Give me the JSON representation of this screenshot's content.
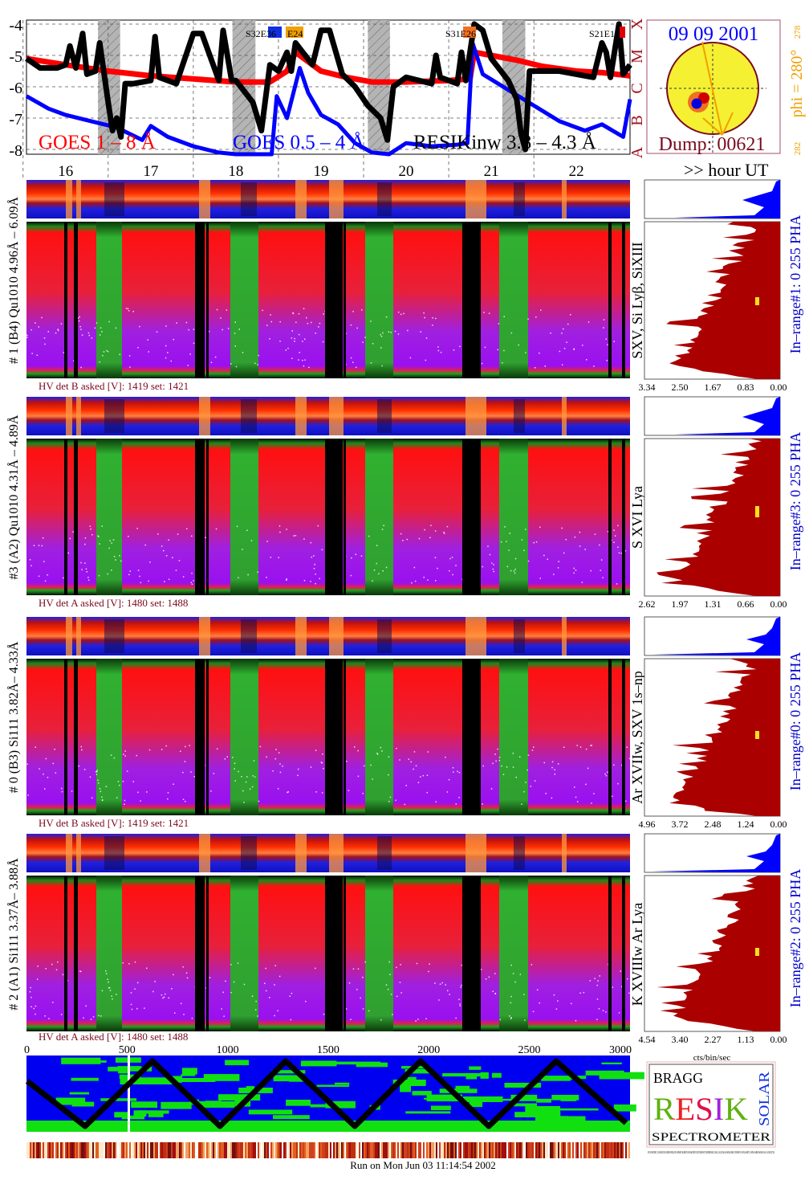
{
  "chart_data": [
    {
      "type": "line",
      "title": "",
      "xlabel": ">> hour UT",
      "ylabel": "",
      "xlim": [
        15.54,
        22.63
      ],
      "ylim": [
        -8.15,
        -3.9
      ],
      "y_scale": "log10 flux",
      "x_ticks": [
        "16",
        "17",
        "18",
        "19",
        "20",
        "21",
        "22"
      ],
      "y_ticks": [
        "-4",
        "-5",
        "-6",
        "-7",
        "-8"
      ],
      "goes_class_labels": [
        "A",
        "B",
        "C",
        "M",
        "X"
      ],
      "grid": true,
      "night_intervals_hours": [
        [
          16.38,
          16.64
        ],
        [
          17.96,
          18.23
        ],
        [
          19.55,
          19.81
        ],
        [
          21.13,
          21.4
        ]
      ],
      "series": [
        {
          "name": "GOES 1 – 8 Å",
          "color": "#ff0000",
          "x": [
            15.54,
            16.0,
            16.5,
            17.0,
            17.5,
            18.0,
            18.4,
            18.6,
            18.7,
            19.0,
            19.3,
            19.6,
            20.0,
            20.5,
            20.75,
            20.8,
            21.0,
            21.3,
            21.6,
            22.0,
            22.3,
            22.63
          ],
          "y": [
            -5.1,
            -5.3,
            -5.5,
            -5.65,
            -5.75,
            -5.85,
            -5.85,
            -5.5,
            -4.9,
            -5.5,
            -5.7,
            -5.85,
            -5.85,
            -5.8,
            -5.75,
            -4.9,
            -5.0,
            -5.15,
            -5.35,
            -5.5,
            -5.55,
            -5.65
          ]
        },
        {
          "name": "GOES 0.5 – 4 Å",
          "color": "#0000ff",
          "x": [
            15.54,
            15.8,
            16.0,
            16.3,
            16.6,
            16.9,
            17.0,
            17.2,
            17.5,
            17.8,
            18.0,
            18.3,
            18.42,
            18.48,
            18.6,
            18.75,
            18.85,
            19.0,
            19.2,
            19.4,
            19.6,
            19.8,
            20.0,
            20.3,
            20.6,
            20.72,
            20.78,
            20.9,
            21.2,
            21.5,
            21.8,
            22.1,
            22.3,
            22.55,
            22.63
          ],
          "y": [
            -6.3,
            -6.7,
            -6.9,
            -7.1,
            -7.3,
            -7.7,
            -7.25,
            -7.6,
            -7.9,
            -8.1,
            -8.2,
            -8.2,
            -8.2,
            -6.3,
            -7.0,
            -5.4,
            -6.2,
            -6.9,
            -7.2,
            -7.8,
            -8.1,
            -8.2,
            -7.8,
            -7.9,
            -7.85,
            -7.8,
            -4.6,
            -5.6,
            -6.1,
            -6.6,
            -7.1,
            -7.4,
            -7.2,
            -7.6,
            -6.4
          ]
        },
        {
          "name": "RESIKinw 3.8 – 4.3 Å",
          "color": "#000000",
          "x": [
            15.54,
            15.7,
            15.9,
            16.0,
            16.05,
            16.12,
            16.2,
            16.25,
            16.35,
            16.4,
            16.5,
            16.55,
            16.6,
            16.65,
            16.7,
            16.8,
            17.0,
            17.05,
            17.1,
            17.3,
            17.5,
            17.6,
            17.8,
            17.85,
            17.95,
            18.0,
            18.2,
            18.3,
            18.4,
            18.5,
            18.6,
            18.65,
            18.7,
            18.9,
            19.0,
            19.1,
            19.25,
            19.4,
            19.55,
            19.7,
            19.78,
            19.85,
            20.0,
            20.3,
            20.35,
            20.4,
            20.6,
            20.65,
            20.7,
            20.8,
            20.9,
            21.0,
            21.2,
            21.3,
            21.35,
            21.4,
            21.45,
            21.6,
            21.8,
            22.0,
            22.2,
            22.3,
            22.35,
            22.4,
            22.5,
            22.55,
            22.63
          ],
          "y": [
            -5.1,
            -5.4,
            -5.4,
            -5.3,
            -4.7,
            -5.4,
            -4.3,
            -5.6,
            -5.5,
            -4.6,
            -6.5,
            -7.4,
            -7.0,
            -7.6,
            -5.9,
            -5.9,
            -5.8,
            -4.4,
            -5.7,
            -5.9,
            -4.3,
            -4.3,
            -5.8,
            -4.2,
            -5.8,
            -5.8,
            -6.5,
            -7.4,
            -5.3,
            -5.5,
            -4.9,
            -5.5,
            -4.6,
            -5.3,
            -4.2,
            -4.2,
            -5.6,
            -6.0,
            -6.6,
            -7.0,
            -7.7,
            -6.0,
            -5.7,
            -5.9,
            -5.0,
            -5.7,
            -5.9,
            -4.9,
            -5.8,
            -4.0,
            -4.2,
            -5.1,
            -5.8,
            -6.4,
            -7.5,
            -8.0,
            -5.5,
            -5.5,
            -5.5,
            -5.6,
            -5.7,
            -4.6,
            -4.9,
            -5.7,
            -4.0,
            -5.6,
            -5.3
          ]
        }
      ],
      "annotations": [
        "S32E36",
        "E24",
        "S31E26",
        "S21E18"
      ]
    },
    {
      "type": "heatmap",
      "panels": [
        {
          "label": "# 1 (B4) Qu1010 4.96Å – 6.09Å",
          "lines": "SXV, Si Lyβ, SiXIII",
          "range": "In–range#1:   0 255   PHA",
          "hv": "HV det B asked [V]:  1419 set:  1421",
          "x_ticks": [
            "3.34",
            "2.50",
            "1.67",
            "0.83",
            "0.00"
          ]
        },
        {
          "label": "#3 (A2) Qu1010  4.31Å – 4.89Å",
          "lines": "S XVI Lya",
          "range": "In–range#3:   0 255   PHA",
          "hv": "HV det A asked [V]:  1480 set:  1488",
          "x_ticks": [
            "2.62",
            "1.97",
            "1.31",
            "0.66",
            "0.00"
          ]
        },
        {
          "label": "# 0 (B3) Si111  3.82Å– 4.33Å",
          "lines": "Ar XVIIw,  SXV 1s–np",
          "range": "In–range#0:   0 255   PHA",
          "hv": "HV det B asked [V]:  1419 set:  1421",
          "x_ticks": [
            "4.96",
            "3.72",
            "2.48",
            "1.24",
            "0.00"
          ]
        },
        {
          "label": "# 2 (A1) Si111  3.37Å– 3.88Å",
          "lines": "K XVIIIw  Ar Lya",
          "range": "In–range#2:   0 255   PHA",
          "hv": "HV det A asked [V]:  1480 set:  1488",
          "x_ticks": [
            "4.54",
            "3.40",
            "2.27",
            "1.13",
            "0.00"
          ]
        }
      ],
      "hist_xlabel": "cts/bin/sec"
    },
    {
      "type": "heatmap",
      "x_ticks": [
        "0",
        "500",
        "1000",
        "1500",
        "2000",
        "2500",
        "3000"
      ],
      "xlim": [
        0,
        3000
      ]
    }
  ],
  "sun": {
    "date": "09 09 2001",
    "dump": "Dump: 00621",
    "phi": "phi = 280°",
    "phi_top": "278",
    "phi_bottom": "282",
    "colors": {
      "disk": "#f5f032",
      "limb": "#7a0a1e",
      "ray": "#f0a000"
    }
  },
  "logo": {
    "letters_bragg": "BRAGG",
    "letters_resik": "RESIK",
    "letters_solar": "SOLAR",
    "subtitle": "SPECTROMETER",
    "credits": "SYLWESTER  CULHANE  DOSCHEK  PHILLIPS  OPARIN  KORDYLEWSKI  BENTLEY  BROWN  TRZEBINSKI  LANG  GALCZAK  KOWALINSKI  STEPANOV  AFANASIEV  LISIN  SIARKOWSKI  KALA  STANCZYK"
  },
  "footer": {
    "run": "Run on Mon Jun 03 11:14:54 2002"
  },
  "colors": {
    "goes_long": "#ff0000",
    "goes_short": "#0000ff",
    "resik": "#000000",
    "hv_text": "#7a0a1e",
    "range_text": "#0000cc",
    "hist_fill": "#aa0000",
    "pha_fill": "#0000ff"
  }
}
